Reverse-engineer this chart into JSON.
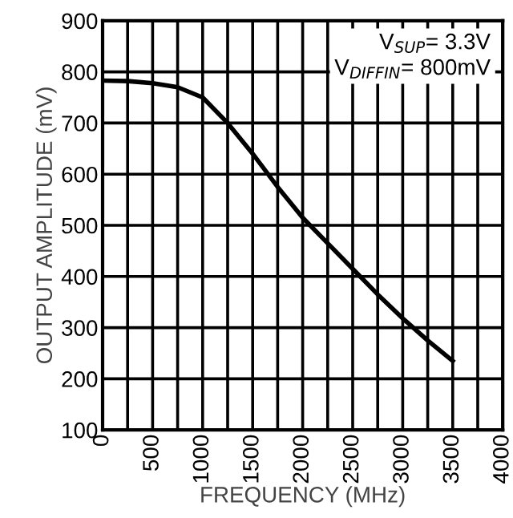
{
  "chart_data": {
    "type": "line",
    "xlabel": "FREQUENCY (MHz)",
    "ylabel": "OUTPUT AMPLITUDE (mV)",
    "x": [
      0,
      250,
      500,
      750,
      1000,
      1250,
      1500,
      1750,
      2000,
      2250,
      2500,
      2750,
      3000,
      3250,
      3500
    ],
    "series": [
      {
        "color": "#000000",
        "values": [
          783,
          782,
          778,
          770,
          750,
          700,
          640,
          575,
          515,
          465,
          415,
          365,
          318,
          275,
          235
        ]
      }
    ],
    "xlim": [
      0,
      4000
    ],
    "ylim": [
      100,
      900
    ],
    "xticks": [
      0,
      {
        "value": 250,
        "label": null
      },
      500,
      {
        "value": 750,
        "label": null
      },
      1000,
      {
        "value": 1250,
        "label": null
      },
      1500,
      {
        "value": 1750,
        "label": null
      },
      2000,
      {
        "value": 2250,
        "label": null
      },
      2500,
      {
        "value": 2750,
        "label": null
      },
      3000,
      {
        "value": 3250,
        "label": null
      },
      3500,
      {
        "value": 3750,
        "label": null
      },
      4000
    ],
    "yticks": [
      100,
      200,
      300,
      400,
      500,
      600,
      700,
      800,
      900
    ],
    "grid": true,
    "legend": false,
    "marker": "none",
    "line_style": "solid",
    "annotations": [
      "V$_{SUP}$= 3.3V\nV$_{DIFFIN}$= 800mV"
    ]
  }
}
